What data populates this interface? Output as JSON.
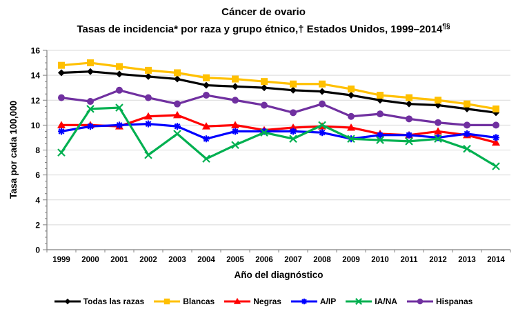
{
  "title": {
    "line1": "Cáncer de ovario",
    "line2": "Tasas de incidencia* por raza y grupo étnico,† Estados Unidos, 1999–2014",
    "line2_superscript": "¶§"
  },
  "chart_data": {
    "type": "line",
    "title": "Cáncer de ovario — Tasas de incidencia* por raza y grupo étnico,† Estados Unidos, 1999–2014¶§",
    "xlabel": "Año del diagnóstico",
    "ylabel": "Tasa por cada 100,000",
    "categories": [
      "1999",
      "2000",
      "2001",
      "2002",
      "2003",
      "2004",
      "2005",
      "2006",
      "2007",
      "2008",
      "2009",
      "2010",
      "2011",
      "2012",
      "2013",
      "2014"
    ],
    "ylim": [
      0,
      16
    ],
    "y_tick_step": 2,
    "y_minor_tick_step": 0.5,
    "grid": true,
    "legend_position": "bottom",
    "series": [
      {
        "name": "Todas las razas",
        "color": "#000000",
        "marker": "diamond",
        "values": [
          14.2,
          14.3,
          14.1,
          13.9,
          13.7,
          13.2,
          13.1,
          13.0,
          12.8,
          12.7,
          12.4,
          12.0,
          11.7,
          11.6,
          11.3,
          11.0
        ]
      },
      {
        "name": "Blancas",
        "color": "#FFC000",
        "marker": "square",
        "values": [
          14.8,
          15.0,
          14.7,
          14.4,
          14.2,
          13.8,
          13.7,
          13.5,
          13.3,
          13.3,
          12.9,
          12.4,
          12.2,
          12.0,
          11.7,
          11.3
        ]
      },
      {
        "name": "Negras",
        "color": "#FF0000",
        "marker": "triangle",
        "values": [
          10.0,
          10.0,
          9.9,
          10.7,
          10.8,
          9.9,
          10.0,
          9.6,
          9.8,
          9.9,
          9.8,
          9.3,
          9.2,
          9.5,
          9.2,
          8.6
        ]
      },
      {
        "name": "A/IP",
        "color": "#0000FF",
        "marker": "asterisk",
        "values": [
          9.5,
          9.9,
          10.0,
          10.1,
          9.9,
          8.9,
          9.5,
          9.5,
          9.5,
          9.4,
          8.9,
          9.2,
          9.2,
          9.0,
          9.3,
          9.0
        ]
      },
      {
        "name": "IA/NA",
        "color": "#00B050",
        "marker": "x",
        "values": [
          7.8,
          11.3,
          11.4,
          7.6,
          9.3,
          7.3,
          8.4,
          9.4,
          8.9,
          10.0,
          8.9,
          8.8,
          8.7,
          8.9,
          8.1,
          6.7
        ]
      },
      {
        "name": "Hispanas",
        "color": "#7030A0",
        "marker": "circle",
        "values": [
          12.2,
          11.9,
          12.8,
          12.2,
          11.7,
          12.4,
          12.0,
          11.6,
          11.0,
          11.7,
          10.7,
          10.9,
          10.5,
          10.2,
          10.0,
          10.0
        ]
      }
    ]
  }
}
